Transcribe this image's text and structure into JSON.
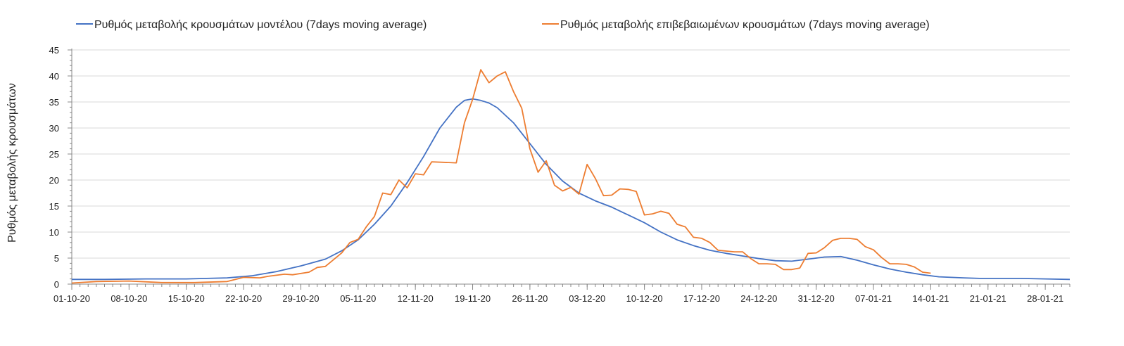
{
  "chart_data": {
    "type": "line",
    "title": "",
    "xlabel": "",
    "ylabel": "Ρυθμός μεταβολής κρουσμάτων",
    "ylim": [
      0,
      45
    ],
    "yticks": [
      0,
      5,
      10,
      15,
      20,
      25,
      30,
      35,
      40,
      45
    ],
    "grid": true,
    "legend_position": "top",
    "x_start": "01-10-20",
    "x_end": "31-01-21",
    "xtick_labels": [
      "01-10-20",
      "08-10-20",
      "15-10-20",
      "22-10-20",
      "29-10-20",
      "05-11-20",
      "12-11-20",
      "19-11-20",
      "26-11-20",
      "03-12-20",
      "10-12-20",
      "17-12-20",
      "24-12-20",
      "31-12-20",
      "07-01-21",
      "14-01-21",
      "21-01-21",
      "28-01-21"
    ],
    "series": [
      {
        "name": "Ρυθμός μεταβολής κρουσμάτων μοντέλου (7days moving average)",
        "color": "#4472C4",
        "points": [
          [
            "01-10-20",
            0.9
          ],
          [
            "05-10-20",
            0.9
          ],
          [
            "10-10-20",
            1.0
          ],
          [
            "15-10-20",
            1.0
          ],
          [
            "20-10-20",
            1.2
          ],
          [
            "23-10-20",
            1.6
          ],
          [
            "26-10-20",
            2.4
          ],
          [
            "29-10-20",
            3.5
          ],
          [
            "01-11-20",
            4.8
          ],
          [
            "03-11-20",
            6.4
          ],
          [
            "05-11-20",
            8.5
          ],
          [
            "07-11-20",
            11.5
          ],
          [
            "09-11-20",
            15.0
          ],
          [
            "11-11-20",
            19.5
          ],
          [
            "13-11-20",
            24.5
          ],
          [
            "15-11-20",
            30.0
          ],
          [
            "17-11-20",
            34.0
          ],
          [
            "18-11-20",
            35.3
          ],
          [
            "19-11-20",
            35.6
          ],
          [
            "20-11-20",
            35.3
          ],
          [
            "21-11-20",
            34.8
          ],
          [
            "22-11-20",
            33.9
          ],
          [
            "24-11-20",
            31.0
          ],
          [
            "26-11-20",
            27.0
          ],
          [
            "28-11-20",
            23.0
          ],
          [
            "30-11-20",
            19.8
          ],
          [
            "02-12-20",
            17.5
          ],
          [
            "04-12-20",
            16.0
          ],
          [
            "06-12-20",
            14.8
          ],
          [
            "08-12-20",
            13.3
          ],
          [
            "10-12-20",
            11.8
          ],
          [
            "12-12-20",
            10.0
          ],
          [
            "14-12-20",
            8.5
          ],
          [
            "16-12-20",
            7.4
          ],
          [
            "18-12-20",
            6.5
          ],
          [
            "20-12-20",
            5.9
          ],
          [
            "22-12-20",
            5.4
          ],
          [
            "24-12-20",
            4.9
          ],
          [
            "26-12-20",
            4.5
          ],
          [
            "28-12-20",
            4.4
          ],
          [
            "30-12-20",
            4.8
          ],
          [
            "01-01-21",
            5.2
          ],
          [
            "03-01-21",
            5.3
          ],
          [
            "05-01-21",
            4.6
          ],
          [
            "07-01-21",
            3.7
          ],
          [
            "09-01-21",
            2.9
          ],
          [
            "11-01-21",
            2.3
          ],
          [
            "13-01-21",
            1.8
          ],
          [
            "15-01-21",
            1.4
          ],
          [
            "18-01-21",
            1.2
          ],
          [
            "20-01-21",
            1.1
          ],
          [
            "25-01-21",
            1.1
          ],
          [
            "28-01-21",
            1.0
          ],
          [
            "31-01-21",
            0.9
          ]
        ]
      },
      {
        "name": "Ρυθμός μεταβολής επιβεβαιωμένων κρουσμάτων (7days moving average)",
        "color": "#ED7D31",
        "points": [
          [
            "01-10-20",
            0.2
          ],
          [
            "04-10-20",
            0.5
          ],
          [
            "08-10-20",
            0.6
          ],
          [
            "12-10-20",
            0.3
          ],
          [
            "16-10-20",
            0.3
          ],
          [
            "20-10-20",
            0.5
          ],
          [
            "22-10-20",
            1.3
          ],
          [
            "24-10-20",
            1.2
          ],
          [
            "25-10-20",
            1.5
          ],
          [
            "27-10-20",
            1.9
          ],
          [
            "28-10-20",
            1.8
          ],
          [
            "30-10-20",
            2.3
          ],
          [
            "31-10-20",
            3.2
          ],
          [
            "01-11-20",
            3.4
          ],
          [
            "03-11-20",
            6.0
          ],
          [
            "04-11-20",
            8.0
          ],
          [
            "05-11-20",
            8.6
          ],
          [
            "06-11-20",
            11.0
          ],
          [
            "07-11-20",
            13.0
          ],
          [
            "08-11-20",
            17.5
          ],
          [
            "09-11-20",
            17.2
          ],
          [
            "10-11-20",
            20.0
          ],
          [
            "11-11-20",
            18.5
          ],
          [
            "12-11-20",
            21.2
          ],
          [
            "13-11-20",
            21.0
          ],
          [
            "14-11-20",
            23.5
          ],
          [
            "17-11-20",
            23.3
          ],
          [
            "18-11-20",
            31.0
          ],
          [
            "19-11-20",
            35.5
          ],
          [
            "20-11-20",
            41.2
          ],
          [
            "21-11-20",
            38.7
          ],
          [
            "22-11-20",
            40.0
          ],
          [
            "23-11-20",
            40.8
          ],
          [
            "24-11-20",
            37.0
          ],
          [
            "25-11-20",
            33.8
          ],
          [
            "26-11-20",
            26.0
          ],
          [
            "27-11-20",
            21.5
          ],
          [
            "28-11-20",
            23.7
          ],
          [
            "29-11-20",
            19.0
          ],
          [
            "30-11-20",
            17.9
          ],
          [
            "01-12-20",
            18.6
          ],
          [
            "02-12-20",
            17.3
          ],
          [
            "03-12-20",
            23.0
          ],
          [
            "04-12-20",
            20.3
          ],
          [
            "05-12-20",
            17.0
          ],
          [
            "06-12-20",
            17.1
          ],
          [
            "07-12-20",
            18.3
          ],
          [
            "08-12-20",
            18.2
          ],
          [
            "09-12-20",
            17.8
          ],
          [
            "10-12-20",
            13.3
          ],
          [
            "11-12-20",
            13.5
          ],
          [
            "12-12-20",
            14.0
          ],
          [
            "13-12-20",
            13.6
          ],
          [
            "14-12-20",
            11.5
          ],
          [
            "15-12-20",
            11.0
          ],
          [
            "16-12-20",
            9.0
          ],
          [
            "17-12-20",
            8.8
          ],
          [
            "18-12-20",
            8.0
          ],
          [
            "19-12-20",
            6.5
          ],
          [
            "21-12-20",
            6.2
          ],
          [
            "22-12-20",
            6.2
          ],
          [
            "23-12-20",
            4.9
          ],
          [
            "24-12-20",
            3.9
          ],
          [
            "25-12-20",
            3.9
          ],
          [
            "26-12-20",
            3.8
          ],
          [
            "27-12-20",
            2.8
          ],
          [
            "28-12-20",
            2.8
          ],
          [
            "29-12-20",
            3.1
          ],
          [
            "30-12-20",
            5.9
          ],
          [
            "31-12-20",
            6.0
          ],
          [
            "01-01-21",
            7.0
          ],
          [
            "02-01-21",
            8.4
          ],
          [
            "03-01-21",
            8.8
          ],
          [
            "04-01-21",
            8.8
          ],
          [
            "05-01-21",
            8.6
          ],
          [
            "06-01-21",
            7.2
          ],
          [
            "07-01-21",
            6.6
          ],
          [
            "08-01-21",
            5.1
          ],
          [
            "09-01-21",
            3.9
          ],
          [
            "10-01-21",
            3.9
          ],
          [
            "11-01-21",
            3.8
          ],
          [
            "12-01-21",
            3.3
          ],
          [
            "13-01-21",
            2.3
          ],
          [
            "14-01-21",
            2.1
          ]
        ]
      }
    ]
  }
}
